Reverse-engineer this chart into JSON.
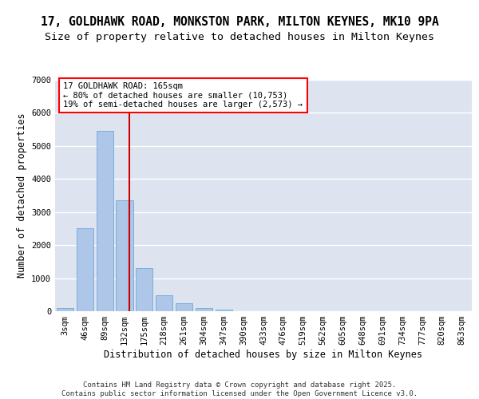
{
  "title_line1": "17, GOLDHAWK ROAD, MONKSTON PARK, MILTON KEYNES, MK10 9PA",
  "title_line2": "Size of property relative to detached houses in Milton Keynes",
  "xlabel": "Distribution of detached houses by size in Milton Keynes",
  "ylabel": "Number of detached properties",
  "bar_labels": [
    "3sqm",
    "46sqm",
    "89sqm",
    "132sqm",
    "175sqm",
    "218sqm",
    "261sqm",
    "304sqm",
    "347sqm",
    "390sqm",
    "433sqm",
    "476sqm",
    "519sqm",
    "562sqm",
    "605sqm",
    "648sqm",
    "691sqm",
    "734sqm",
    "777sqm",
    "820sqm",
    "863sqm"
  ],
  "bar_values": [
    100,
    2500,
    5450,
    3350,
    1300,
    480,
    230,
    100,
    40,
    0,
    0,
    0,
    0,
    0,
    0,
    0,
    0,
    0,
    0,
    0,
    0
  ],
  "bar_color": "#aec6e8",
  "bar_edgecolor": "#5a9fd4",
  "vline_color": "#cc0000",
  "annotation_text": "17 GOLDHAWK ROAD: 165sqm\n← 80% of detached houses are smaller (10,753)\n19% of semi-detached houses are larger (2,573) →",
  "ylim": [
    0,
    7000
  ],
  "yticks": [
    0,
    1000,
    2000,
    3000,
    4000,
    5000,
    6000,
    7000
  ],
  "background_color": "#dde4f0",
  "grid_color": "white",
  "footnote": "Contains HM Land Registry data © Crown copyright and database right 2025.\nContains public sector information licensed under the Open Government Licence v3.0.",
  "title_fontsize": 10.5,
  "subtitle_fontsize": 9.5,
  "axis_label_fontsize": 8.5,
  "tick_fontsize": 7.5,
  "annotation_fontsize": 7.5,
  "footnote_fontsize": 6.5
}
